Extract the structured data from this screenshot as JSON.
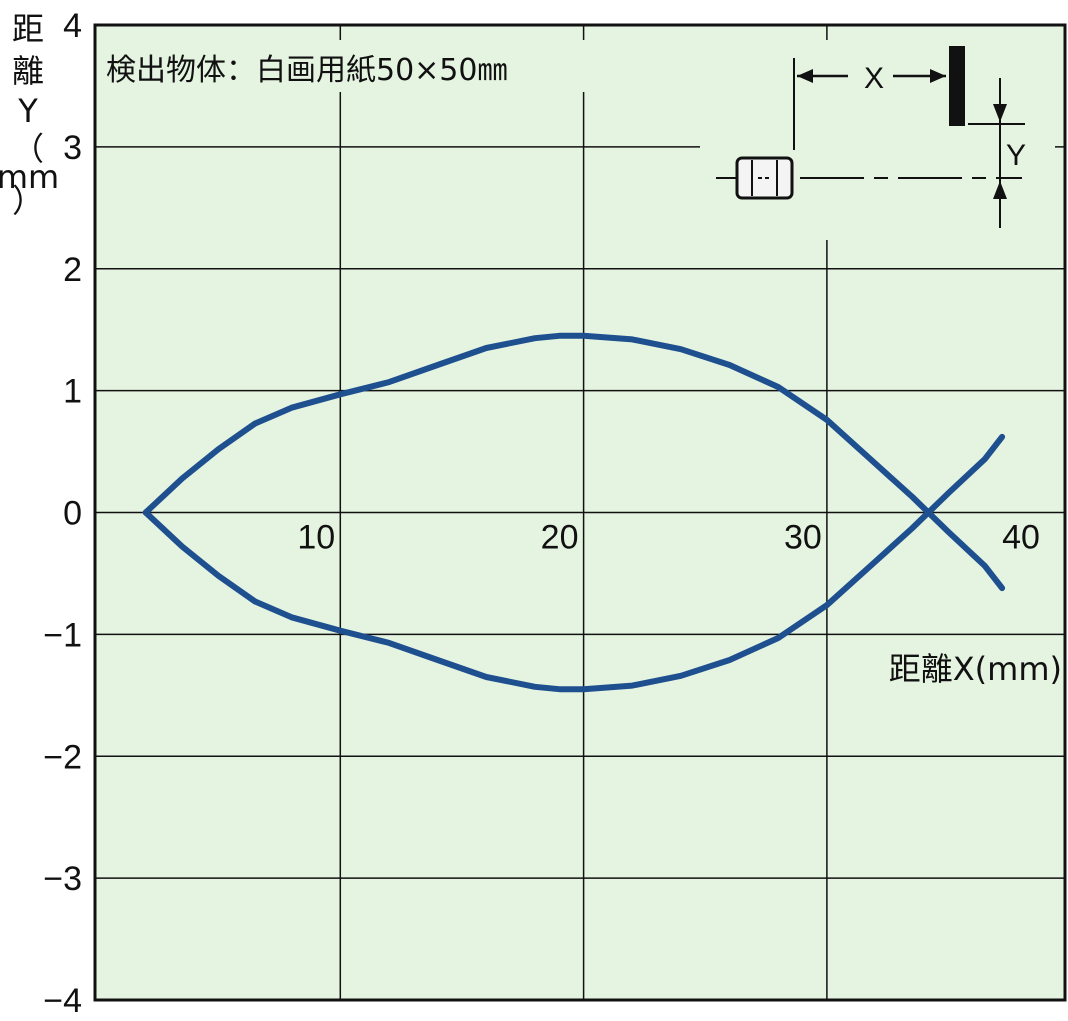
{
  "chart_data": {
    "type": "line",
    "title": "",
    "annotation": "検出物体：白画用紙50×50㎜",
    "xlabel": "距離X(mm)",
    "ylabel": "距離Y（mm）",
    "ylabel_chars": [
      "距",
      "離",
      "Y",
      "（",
      "mm",
      "）"
    ],
    "xlim": [
      0,
      40
    ],
    "ylim": [
      -4,
      4
    ],
    "x_ticks": [
      10,
      20,
      30,
      40
    ],
    "y_ticks": [
      4,
      3,
      2,
      1,
      0,
      -1,
      -2,
      -3,
      -4
    ],
    "y_tick_labels": [
      "4",
      "3",
      "2",
      "1",
      "0",
      "−1",
      "−2",
      "−3",
      "−4"
    ],
    "grid": true,
    "background_color": "#e5f3e1",
    "series_color": "#1e4f8f",
    "series": [
      {
        "x": [
          2,
          3.5,
          5,
          6.5,
          8,
          10,
          12,
          14,
          16,
          18,
          19,
          20,
          22,
          24,
          26,
          28,
          30,
          32,
          33.5,
          35,
          36.5,
          37.2
        ],
        "y": [
          0,
          0.28,
          0.52,
          0.73,
          0.86,
          0.97,
          1.07,
          1.21,
          1.35,
          1.43,
          1.45,
          1.45,
          1.42,
          1.34,
          1.21,
          1.03,
          0.76,
          0.4,
          0.13,
          -0.16,
          -0.44,
          -0.62
        ]
      },
      {
        "x": [
          2,
          3.5,
          5,
          6.5,
          8,
          10,
          12,
          14,
          16,
          18,
          19,
          20,
          22,
          24,
          26,
          28,
          30,
          32,
          33.5,
          35,
          36.5,
          37.2
        ],
        "y": [
          0,
          -0.28,
          -0.52,
          -0.73,
          -0.86,
          -0.97,
          -1.07,
          -1.21,
          -1.35,
          -1.43,
          -1.45,
          -1.45,
          -1.42,
          -1.34,
          -1.21,
          -1.03,
          -0.76,
          -0.4,
          -0.13,
          0.16,
          0.44,
          0.62
        ]
      }
    ],
    "diagram": {
      "x_label": "X",
      "y_label": "Y",
      "icons": [
        "sensor-icon",
        "target-plate-icon"
      ]
    }
  }
}
